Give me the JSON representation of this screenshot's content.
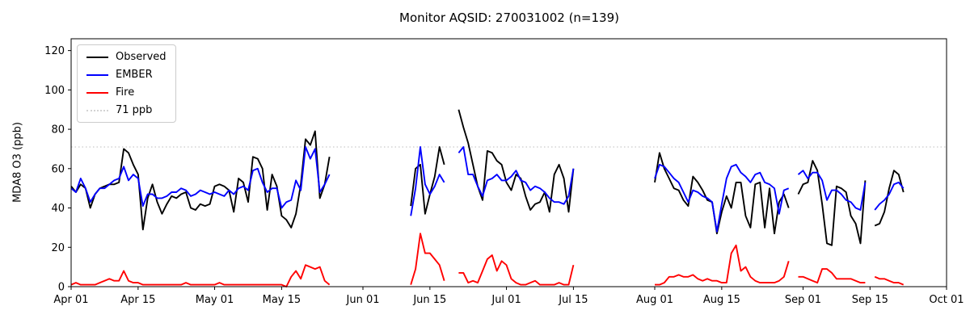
{
  "title": "Monitor AQSID: 270031002 (n=139)",
  "y_axis": {
    "label": "MDA8 O3 (ppb)",
    "ticks": [
      0,
      20,
      40,
      60,
      80,
      100,
      120
    ],
    "range": [
      0,
      126
    ]
  },
  "x_axis": {
    "range_days": [
      0,
      183
    ],
    "ticks": [
      {
        "label": "Apr 01",
        "day": 0
      },
      {
        "label": "Apr 15",
        "day": 14
      },
      {
        "label": "May 01",
        "day": 30
      },
      {
        "label": "May 15",
        "day": 44
      },
      {
        "label": "Jun 01",
        "day": 61
      },
      {
        "label": "Jun 15",
        "day": 75
      },
      {
        "label": "Jul 01",
        "day": 91
      },
      {
        "label": "Jul 15",
        "day": 105
      },
      {
        "label": "Aug 01",
        "day": 122
      },
      {
        "label": "Aug 15",
        "day": 136
      },
      {
        "label": "Sep 01",
        "day": 153
      },
      {
        "label": "Sep 15",
        "day": 167
      },
      {
        "label": "Oct 01",
        "day": 183
      }
    ]
  },
  "threshold": {
    "value": 71,
    "label": "71 ppb",
    "color": "#d3d3d3",
    "style": "dotted"
  },
  "legend": {
    "items": [
      {
        "label": "Observed",
        "color": "#000000",
        "style": "solid"
      },
      {
        "label": "EMBER",
        "color": "#0000ff",
        "style": "solid"
      },
      {
        "label": "Fire",
        "color": "#ff0000",
        "style": "solid"
      },
      {
        "label": "71 ppb",
        "color": "#d3d3d3",
        "style": "dotted"
      }
    ]
  },
  "chart_data": {
    "type": "line",
    "title": "Monitor AQSID: 270031002 (n=139)",
    "xlabel": "",
    "ylabel": "MDA8 O3 (ppb)",
    "ylim": [
      0,
      126
    ],
    "grid": false,
    "legend_position": "upper left",
    "n_points": 139,
    "x_unit": "days_since_Apr_01",
    "threshold_line": {
      "value": 71,
      "label": "71 ppb"
    },
    "series": [
      {
        "name": "Observed",
        "color": "#000000",
        "segments": [
          {
            "start_date": "Apr 01",
            "start_day": 0,
            "values": [
              51,
              48,
              52,
              50,
              40,
              47,
              50,
              51,
              52,
              52,
              53,
              70,
              68,
              62,
              57,
              29,
              45,
              52,
              43,
              37,
              42,
              46,
              45,
              47,
              48,
              40,
              39,
              42,
              41,
              42,
              51,
              52,
              51,
              49,
              38,
              55,
              53,
              43,
              66,
              65,
              60,
              39,
              57,
              51,
              36,
              34,
              30,
              37,
              52,
              75,
              72,
              79,
              45,
              52,
              66
            ]
          },
          {
            "start_date": "Jun 11",
            "start_day": 71,
            "values": [
              41,
              60,
              62,
              37,
              47,
              56,
              71,
              62
            ]
          },
          {
            "start_date": "Jun 21",
            "start_day": 81,
            "values": [
              90,
              81,
              73,
              62,
              51,
              44,
              69,
              68,
              64,
              62,
              53,
              49,
              57,
              55,
              46,
              39,
              42,
              43,
              48,
              38,
              57,
              62,
              55,
              38,
              60
            ]
          },
          {
            "start_date": "Aug 01",
            "start_day": 122,
            "values": [
              53,
              68,
              60,
              55,
              50,
              49,
              44,
              41,
              56,
              53,
              49,
              44,
              43,
              27,
              38,
              46,
              40,
              53,
              53,
              36,
              30,
              52,
              53,
              30,
              50,
              27,
              43,
              47,
              40
            ]
          },
          {
            "start_date": "Aug 31",
            "start_day": 152,
            "values": [
              47,
              52,
              53,
              64,
              59,
              42,
              22,
              21,
              51,
              50,
              48,
              36,
              32,
              22,
              54
            ]
          },
          {
            "start_date": "Sep 16",
            "start_day": 168,
            "values": [
              31,
              32,
              38,
              50,
              59,
              57,
              48
            ]
          }
        ]
      },
      {
        "name": "EMBER",
        "color": "#0000ff",
        "segments": [
          {
            "start_date": "Apr 01",
            "start_day": 0,
            "values": [
              50,
              48,
              55,
              50,
              43,
              47,
              50,
              50,
              52,
              54,
              55,
              61,
              54,
              57,
              55,
              41,
              47,
              47,
              45,
              45,
              46,
              48,
              48,
              50,
              49,
              46,
              47,
              49,
              48,
              47,
              48,
              47,
              46,
              49,
              47,
              50,
              51,
              49,
              59,
              60,
              53,
              48,
              50,
              50,
              40,
              43,
              44,
              54,
              49,
              71,
              65,
              70,
              48,
              52,
              57
            ]
          },
          {
            "start_date": "Jun 11",
            "start_day": 71,
            "values": [
              36,
              50,
              71,
              52,
              47,
              51,
              57,
              53
            ]
          },
          {
            "start_date": "Jun 21",
            "start_day": 81,
            "values": [
              68,
              71,
              57,
              57,
              51,
              46,
              54,
              55,
              57,
              54,
              54,
              56,
              59,
              54,
              53,
              49,
              51,
              50,
              48,
              45,
              43,
              43,
              42,
              46,
              60
            ]
          },
          {
            "start_date": "Aug 01",
            "start_day": 122,
            "values": [
              55,
              62,
              61,
              58,
              55,
              53,
              48,
              43,
              49,
              48,
              46,
              45,
              43,
              28,
              42,
              55,
              61,
              62,
              58,
              56,
              53,
              57,
              58,
              53,
              52,
              50,
              37,
              49,
              50
            ]
          },
          {
            "start_date": "Aug 31",
            "start_day": 152,
            "values": [
              57,
              59,
              55,
              58,
              58,
              54,
              44,
              49,
              49,
              47,
              44,
              43,
              40,
              39,
              53
            ]
          },
          {
            "start_date": "Sep 16",
            "start_day": 168,
            "values": [
              39,
              42,
              44,
              47,
              52,
              53,
              50
            ]
          }
        ]
      },
      {
        "name": "Fire",
        "color": "#ff0000",
        "segments": [
          {
            "start_date": "Apr 01",
            "start_day": 0,
            "values": [
              1,
              2,
              1,
              1,
              1,
              1,
              2,
              3,
              4,
              3,
              3,
              8,
              3,
              2,
              2,
              1,
              1,
              1,
              1,
              1,
              1,
              1,
              1,
              1,
              2,
              1,
              1,
              1,
              1,
              1,
              1,
              2,
              1,
              1,
              1,
              1,
              1,
              1,
              1,
              1,
              1,
              1,
              1,
              1,
              1,
              0,
              5,
              8,
              4,
              11,
              10,
              9,
              10,
              3,
              1
            ]
          },
          {
            "start_date": "Jun 11",
            "start_day": 71,
            "values": [
              1,
              9,
              27,
              17,
              17,
              14,
              11,
              3
            ]
          },
          {
            "start_date": "Jun 21",
            "start_day": 81,
            "values": [
              7,
              7,
              2,
              3,
              2,
              8,
              14,
              16,
              8,
              13,
              11,
              4,
              2,
              1,
              1,
              2,
              3,
              1,
              1,
              1,
              1,
              2,
              1,
              1,
              11
            ]
          },
          {
            "start_date": "Aug 01",
            "start_day": 122,
            "values": [
              1,
              1,
              2,
              5,
              5,
              6,
              5,
              5,
              6,
              4,
              3,
              4,
              3,
              3,
              2,
              2,
              17,
              21,
              8,
              10,
              5,
              3,
              2,
              2,
              2,
              2,
              3,
              5,
              13
            ]
          },
          {
            "start_date": "Aug 31",
            "start_day": 152,
            "values": [
              5,
              5,
              4,
              3,
              2,
              9,
              9,
              7,
              4,
              4,
              4,
              4,
              3,
              2,
              2
            ]
          },
          {
            "start_date": "Sep 16",
            "start_day": 168,
            "values": [
              5,
              4,
              4,
              3,
              2,
              2,
              1
            ]
          }
        ]
      }
    ]
  }
}
